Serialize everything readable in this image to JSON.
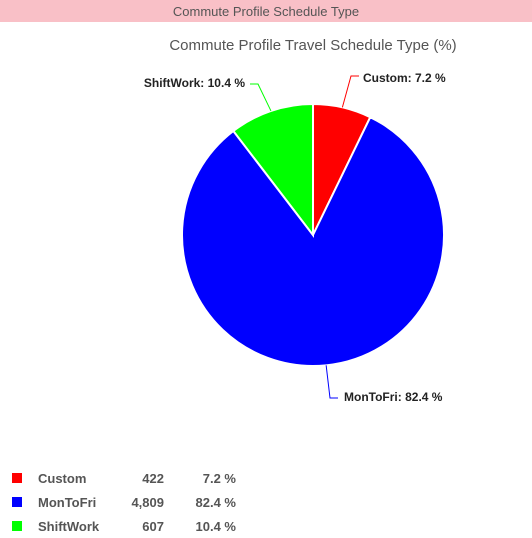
{
  "header": {
    "title": "Commute Profile Schedule Type"
  },
  "chart_data": {
    "type": "pie",
    "title": "Commute Profile Travel Schedule Type (%)",
    "categories": [
      "Custom",
      "MonToFri",
      "ShiftWork"
    ],
    "values": [
      7.2,
      82.4,
      10.4
    ],
    "counts": [
      "422",
      "4,809",
      "607"
    ],
    "pct_labels": [
      "7.2 %",
      "82.4 %",
      "10.4 %"
    ],
    "data_labels": [
      "Custom: 7.2 %",
      "MonToFri: 82.4 %",
      "ShiftWork: 10.4 %"
    ],
    "colors": [
      "#ff0000",
      "#0000ff",
      "#00ff00"
    ],
    "legend_position": "bottom-left"
  }
}
